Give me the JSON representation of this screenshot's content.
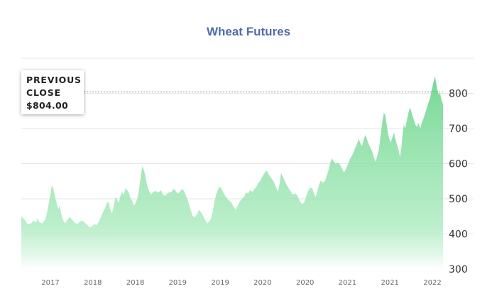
{
  "chart_data": {
    "type": "area",
    "title": "Wheat Futures",
    "xlabel": "",
    "ylabel": "",
    "ylim": [
      300,
      900
    ],
    "yticks": [
      300,
      400,
      500,
      600,
      700,
      800
    ],
    "xticks": [
      "2017",
      "2018",
      "2018",
      "2019",
      "2019",
      "2020",
      "2020",
      "2021",
      "2021",
      "2022"
    ],
    "grid": true,
    "fill_color": "#6fd68f",
    "reference_line": {
      "label_lines": [
        "PREVIOUS",
        "CLOSE"
      ],
      "value_text": "$804.00",
      "value": 804
    },
    "x_range": [
      0,
      100
    ],
    "points": [
      [
        0.0,
        450
      ],
      [
        0.8,
        440
      ],
      [
        1.5,
        428
      ],
      [
        2.3,
        430
      ],
      [
        3.0,
        438
      ],
      [
        3.5,
        432
      ],
      [
        3.8,
        445
      ],
      [
        4.3,
        433
      ],
      [
        5.0,
        430
      ],
      [
        5.6,
        440
      ],
      [
        6.0,
        455
      ],
      [
        6.4,
        480
      ],
      [
        6.8,
        505
      ],
      [
        7.2,
        537
      ],
      [
        7.6,
        530
      ],
      [
        8.0,
        505
      ],
      [
        8.4,
        487
      ],
      [
        8.8,
        470
      ],
      [
        9.1,
        483
      ],
      [
        9.5,
        455
      ],
      [
        9.9,
        440
      ],
      [
        10.3,
        430
      ],
      [
        10.9,
        440
      ],
      [
        11.5,
        448
      ],
      [
        12.1,
        440
      ],
      [
        12.7,
        432
      ],
      [
        13.3,
        428
      ],
      [
        13.9,
        436
      ],
      [
        14.5,
        438
      ],
      [
        15.1,
        432
      ],
      [
        15.7,
        425
      ],
      [
        16.2,
        418
      ],
      [
        16.8,
        422
      ],
      [
        17.3,
        428
      ],
      [
        17.9,
        425
      ],
      [
        18.4,
        435
      ],
      [
        18.9,
        450
      ],
      [
        19.4,
        462
      ],
      [
        19.9,
        475
      ],
      [
        20.3,
        488
      ],
      [
        20.7,
        492
      ],
      [
        21.1,
        470
      ],
      [
        21.5,
        458
      ],
      [
        21.9,
        478
      ],
      [
        22.3,
        505
      ],
      [
        22.7,
        498
      ],
      [
        23.1,
        488
      ],
      [
        23.5,
        508
      ],
      [
        23.9,
        520
      ],
      [
        24.3,
        510
      ],
      [
        24.7,
        530
      ],
      [
        25.1,
        525
      ],
      [
        25.5,
        517
      ],
      [
        25.9,
        502
      ],
      [
        26.3,
        495
      ],
      [
        26.7,
        480
      ],
      [
        27.1,
        488
      ],
      [
        27.5,
        500
      ],
      [
        27.9,
        525
      ],
      [
        28.3,
        560
      ],
      [
        28.7,
        593
      ],
      [
        29.1,
        580
      ],
      [
        29.5,
        560
      ],
      [
        29.9,
        535
      ],
      [
        30.4,
        520
      ],
      [
        30.8,
        512
      ],
      [
        31.3,
        520
      ],
      [
        31.9,
        522
      ],
      [
        32.5,
        518
      ],
      [
        33.1,
        524
      ],
      [
        33.6,
        512
      ],
      [
        34.1,
        508
      ],
      [
        34.6,
        515
      ],
      [
        35.1,
        518
      ],
      [
        35.6,
        520
      ],
      [
        36.1,
        528
      ],
      [
        36.6,
        523
      ],
      [
        37.1,
        515
      ],
      [
        37.6,
        520
      ],
      [
        38.1,
        528
      ],
      [
        38.6,
        522
      ],
      [
        39.1,
        508
      ],
      [
        39.6,
        492
      ],
      [
        40.1,
        470
      ],
      [
        40.6,
        452
      ],
      [
        41.1,
        447
      ],
      [
        41.6,
        455
      ],
      [
        42.1,
        468
      ],
      [
        42.6,
        462
      ],
      [
        43.1,
        452
      ],
      [
        43.6,
        440
      ],
      [
        44.1,
        430
      ],
      [
        44.6,
        436
      ],
      [
        45.0,
        445
      ],
      [
        45.4,
        465
      ],
      [
        45.8,
        492
      ],
      [
        46.2,
        512
      ],
      [
        46.6,
        525
      ],
      [
        47.0,
        535
      ],
      [
        47.4,
        530
      ],
      [
        47.8,
        520
      ],
      [
        48.3,
        510
      ],
      [
        48.8,
        500
      ],
      [
        49.3,
        495
      ],
      [
        49.8,
        490
      ],
      [
        50.3,
        478
      ],
      [
        50.8,
        470
      ],
      [
        51.3,
        480
      ],
      [
        51.8,
        492
      ],
      [
        52.3,
        500
      ],
      [
        52.8,
        505
      ],
      [
        53.3,
        518
      ],
      [
        53.8,
        515
      ],
      [
        54.3,
        525
      ],
      [
        54.8,
        520
      ],
      [
        55.3,
        528
      ],
      [
        55.8,
        535
      ],
      [
        56.2,
        545
      ],
      [
        56.6,
        550
      ],
      [
        57.0,
        560
      ],
      [
        57.4,
        568
      ],
      [
        57.8,
        575
      ],
      [
        58.2,
        580
      ],
      [
        58.6,
        570
      ],
      [
        59.0,
        563
      ],
      [
        59.5,
        555
      ],
      [
        60.0,
        545
      ],
      [
        60.5,
        530
      ],
      [
        60.9,
        520
      ],
      [
        61.3,
        548
      ],
      [
        61.6,
        575
      ],
      [
        62.0,
        563
      ],
      [
        62.5,
        550
      ],
      [
        63.0,
        538
      ],
      [
        63.5,
        528
      ],
      [
        64.0,
        518
      ],
      [
        64.5,
        512
      ],
      [
        65.0,
        516
      ],
      [
        65.5,
        508
      ],
      [
        66.0,
        495
      ],
      [
        66.5,
        485
      ],
      [
        67.0,
        488
      ],
      [
        67.5,
        505
      ],
      [
        68.0,
        522
      ],
      [
        68.5,
        532
      ],
      [
        69.0,
        530
      ],
      [
        69.4,
        515
      ],
      [
        69.8,
        505
      ],
      [
        70.2,
        522
      ],
      [
        70.6,
        540
      ],
      [
        71.0,
        552
      ],
      [
        71.5,
        546
      ],
      [
        72.0,
        550
      ],
      [
        72.4,
        565
      ],
      [
        72.8,
        580
      ],
      [
        73.2,
        600
      ],
      [
        73.6,
        615
      ],
      [
        74.0,
        608
      ],
      [
        74.5,
        600
      ],
      [
        75.0,
        603
      ],
      [
        75.5,
        598
      ],
      [
        76.0,
        588
      ],
      [
        76.5,
        575
      ],
      [
        77.0,
        585
      ],
      [
        77.5,
        600
      ],
      [
        78.0,
        615
      ],
      [
        78.5,
        625
      ],
      [
        79.0,
        640
      ],
      [
        79.5,
        653
      ],
      [
        80.0,
        670
      ],
      [
        80.4,
        658
      ],
      [
        80.8,
        650
      ],
      [
        81.2,
        670
      ],
      [
        81.6,
        682
      ],
      [
        82.0,
        668
      ],
      [
        82.4,
        655
      ],
      [
        82.8,
        645
      ],
      [
        83.2,
        635
      ],
      [
        83.6,
        618
      ],
      [
        84.0,
        605
      ],
      [
        84.4,
        622
      ],
      [
        84.8,
        642
      ],
      [
        85.2,
        680
      ],
      [
        85.6,
        720
      ],
      [
        86.0,
        745
      ],
      [
        86.3,
        738
      ],
      [
        86.6,
        715
      ],
      [
        86.9,
        690
      ],
      [
        87.2,
        672
      ],
      [
        87.6,
        660
      ],
      [
        88.0,
        675
      ],
      [
        88.4,
        688
      ],
      [
        88.8,
        665
      ],
      [
        89.2,
        650
      ],
      [
        89.5,
        636
      ],
      [
        89.8,
        620
      ],
      [
        90.1,
        645
      ],
      [
        90.4,
        682
      ],
      [
        90.7,
        712
      ],
      [
        91.0,
        700
      ],
      [
        91.4,
        722
      ],
      [
        91.8,
        745
      ],
      [
        92.2,
        760
      ],
      [
        92.6,
        742
      ],
      [
        93.0,
        728
      ],
      [
        93.4,
        712
      ],
      [
        93.8,
        705
      ],
      [
        94.2,
        715
      ],
      [
        94.6,
        700
      ],
      [
        95.0,
        718
      ],
      [
        95.4,
        730
      ],
      [
        95.8,
        745
      ],
      [
        96.2,
        760
      ],
      [
        96.6,
        775
      ],
      [
        97.0,
        790
      ],
      [
        97.4,
        815
      ],
      [
        97.8,
        835
      ],
      [
        98.1,
        848
      ],
      [
        98.4,
        826
      ],
      [
        98.7,
        808
      ],
      [
        99.0,
        795
      ],
      [
        99.3,
        802
      ],
      [
        99.55,
        785
      ],
      [
        99.8,
        775
      ],
      [
        100.0,
        770
      ]
    ]
  }
}
